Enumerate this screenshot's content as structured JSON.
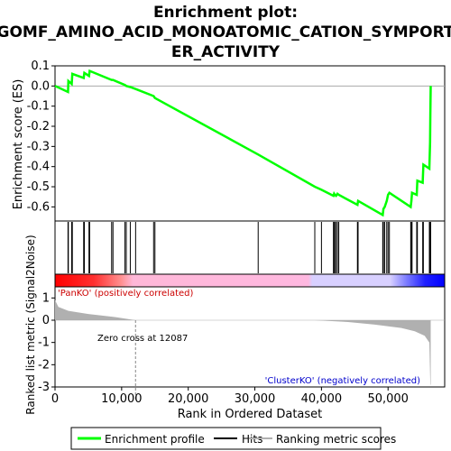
{
  "chart_data": {
    "type": "line",
    "title_lines": [
      "Enrichment plot:",
      "GOMF_AMINO_ACID_MONOATOMIC_CATION_SYMPORT",
      "ER_ACTIVITY"
    ],
    "es_panel": {
      "ylabel": "Enrichment score (ES)",
      "ylim": [
        -0.67,
        0.1
      ],
      "yticks": [
        0.1,
        0.0,
        -0.1,
        -0.2,
        -0.3,
        -0.4,
        -0.5,
        -0.6
      ],
      "ytick_labels": [
        "0.1",
        "0.0",
        "-0.1",
        "-0.2",
        "-0.3",
        "-0.4",
        "-0.5",
        "-0.6"
      ],
      "line_color": "#00ff00",
      "points": [
        [
          0,
          0.0
        ],
        [
          1950,
          -0.03
        ],
        [
          2000,
          0.025
        ],
        [
          2500,
          0.01
        ],
        [
          2600,
          0.06
        ],
        [
          4300,
          0.04
        ],
        [
          4400,
          0.065
        ],
        [
          5100,
          0.05
        ],
        [
          5200,
          0.075
        ],
        [
          8500,
          0.03
        ],
        [
          8700,
          0.03
        ],
        [
          10500,
          0.005
        ],
        [
          10700,
          0.0
        ],
        [
          11300,
          -0.005
        ],
        [
          12100,
          -0.015
        ],
        [
          14800,
          -0.05
        ],
        [
          15000,
          -0.06
        ],
        [
          30500,
          -0.34
        ],
        [
          39000,
          -0.5
        ],
        [
          40000,
          -0.515
        ],
        [
          41800,
          -0.545
        ],
        [
          41900,
          -0.535
        ],
        [
          42000,
          -0.54
        ],
        [
          42200,
          -0.545
        ],
        [
          42400,
          -0.535
        ],
        [
          42600,
          -0.54
        ],
        [
          45400,
          -0.59
        ],
        [
          45500,
          -0.57
        ],
        [
          49200,
          -0.64
        ],
        [
          49300,
          -0.61
        ],
        [
          49500,
          -0.6
        ],
        [
          49800,
          -0.57
        ],
        [
          50000,
          -0.54
        ],
        [
          50200,
          -0.53
        ],
        [
          53400,
          -0.6
        ],
        [
          53500,
          -0.57
        ],
        [
          53600,
          -0.53
        ],
        [
          54300,
          -0.54
        ],
        [
          54400,
          -0.47
        ],
        [
          55200,
          -0.48
        ],
        [
          55300,
          -0.39
        ],
        [
          56200,
          -0.41
        ],
        [
          56300,
          -0.28
        ],
        [
          56350,
          -0.14
        ],
        [
          56400,
          0.0
        ]
      ]
    },
    "hits": [
      1950,
      2000,
      2500,
      2600,
      4300,
      4400,
      5100,
      5200,
      8500,
      8700,
      10500,
      10700,
      11300,
      12100,
      14800,
      15000,
      30500,
      39000,
      40000,
      41800,
      41900,
      42000,
      42200,
      42400,
      42600,
      45400,
      45500,
      49200,
      49300,
      49500,
      49800,
      50000,
      50200,
      53400,
      53500,
      53600,
      54300,
      54400,
      55200,
      55300,
      56200,
      56300,
      56350,
      56400
    ],
    "ranking_panel": {
      "ylabel": "Ranked list metric (Signal2Noise)",
      "ylim": [
        -3,
        1.5
      ],
      "yticks": [
        1,
        0,
        -1,
        -2,
        -3
      ],
      "ytick_labels": [
        "1",
        "0",
        "-1",
        "-2",
        "-3"
      ],
      "fill_color": "#b0b0b0",
      "profile": [
        [
          0,
          0.9
        ],
        [
          500,
          0.6
        ],
        [
          2000,
          0.42
        ],
        [
          5000,
          0.28
        ],
        [
          9000,
          0.14
        ],
        [
          12087,
          0.0
        ],
        [
          39000,
          0.0
        ],
        [
          44000,
          -0.08
        ],
        [
          48000,
          -0.2
        ],
        [
          52000,
          -0.35
        ],
        [
          54000,
          -0.5
        ],
        [
          55500,
          -0.7
        ],
        [
          56200,
          -1.0
        ],
        [
          56350,
          -2.9
        ],
        [
          56400,
          -2.9
        ]
      ],
      "zero_cross_label": "Zero cross at 12087",
      "zero_cross": 12087,
      "pos_label": "'PanKO' (positively correlated)",
      "neg_label": "'ClusterKO' (negatively correlated)"
    },
    "xaxis": {
      "label": "Rank in Ordered Dataset",
      "xlim": [
        0,
        58500
      ],
      "xticks": [
        0,
        10000,
        20000,
        30000,
        40000,
        50000
      ],
      "xtick_labels": [
        "0",
        "10,000",
        "20,000",
        "30,000",
        "40,000",
        "50,000"
      ]
    },
    "legend": [
      {
        "label": "Enrichment profile",
        "color": "#00ff00"
      },
      {
        "label": "Hits",
        "color": "#000000"
      },
      {
        "label": "Ranking metric scores",
        "color": "#b0b0b0"
      }
    ],
    "colors": {
      "red": "#ff0000",
      "pink": "#ffb0d8",
      "lavender": "#d8d0ff",
      "blue": "#0000ff",
      "pos_text": "#cc0000",
      "neg_text": "#0000cc"
    }
  }
}
